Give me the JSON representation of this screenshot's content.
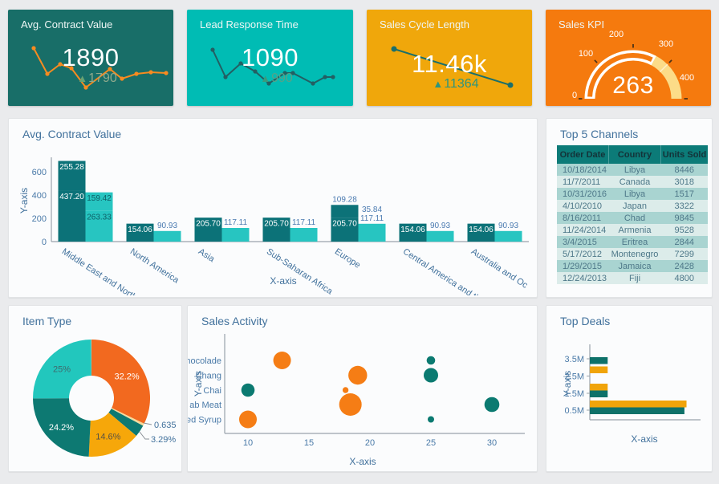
{
  "page": {
    "bg": "#eaebed",
    "panel_bg": "#fbfcfd",
    "panel_border": "#e2e4e6",
    "title_color": "#41719c",
    "axis_text_color": "#4a7aa8",
    "axis_line_color": "#9aa3ab"
  },
  "icons": {
    "up_triangle": "▲"
  },
  "chart_data": [
    {
      "type": "line",
      "kind": "kpi-sparkline",
      "title": "Avg. Contract Value",
      "value": "1890",
      "delta": "1790",
      "bg": "#186e68",
      "line_color": "#f78b20",
      "delta_color": "#8fa98c",
      "triangle_color": "#68a274",
      "points": [
        [
          32,
          48
        ],
        [
          49,
          80
        ],
        [
          65,
          68
        ],
        [
          79,
          73
        ],
        [
          97,
          97
        ],
        [
          127,
          74
        ],
        [
          142,
          86
        ],
        [
          160,
          80
        ],
        [
          178,
          78
        ],
        [
          197,
          79
        ]
      ]
    },
    {
      "type": "line",
      "kind": "kpi-sparkline",
      "title": "Lead Response Time",
      "value": "1090",
      "delta": "990",
      "bg": "#00bcb4",
      "line_color": "#235f63",
      "delta_color": "#57a287",
      "triangle_color": "#3a9a7c",
      "points": [
        [
          32,
          50
        ],
        [
          48,
          84
        ],
        [
          67,
          67
        ],
        [
          85,
          77
        ],
        [
          102,
          92
        ],
        [
          122,
          79
        ],
        [
          132,
          79
        ],
        [
          157,
          92
        ],
        [
          172,
          84
        ],
        [
          182,
          84
        ]
      ]
    },
    {
      "type": "line",
      "kind": "kpi-line",
      "title": "Sales Cycle Length",
      "value": "11.46k",
      "delta": "11364",
      "bg": "#f0a70b",
      "line_color": "#1a6f6b",
      "delta_color": "#2e957d",
      "triangle_color": "#2e957d",
      "points": [
        [
          34,
          49
        ],
        [
          179,
          94
        ]
      ]
    },
    {
      "type": "gauge",
      "title": "Sales KPI",
      "value": 263,
      "min": 0,
      "max": 400,
      "ticks": [
        0,
        100,
        200,
        300,
        400
      ],
      "bg": "#f57a0e",
      "band_color": "#fcdc88",
      "value_band_color": "#ffffff",
      "tick_mark_color": "#4d3318",
      "tick_text_color": "#ffffff"
    },
    {
      "type": "bar",
      "title": "Avg. Contract Value",
      "xlabel": "X-axis",
      "ylabel": "Y-axis",
      "ylim": [
        0,
        700
      ],
      "yticks": [
        0,
        200,
        400,
        600
      ],
      "colors": {
        "series1": "#0c7278",
        "series2": "#27c5c1",
        "label_inside1": "#ffffff",
        "label_inside2": "#0e5f66",
        "label_above": "#4a7ab0"
      },
      "groups": [
        {
          "category": "Middle East and North Af",
          "series1": [
            {
              "v": 437.2,
              "label": "437.20",
              "pos": "inside"
            },
            {
              "v": 255.28,
              "label": "255.28",
              "pos": "inside"
            }
          ],
          "series2": [
            {
              "v": 263.33,
              "label": "263.33",
              "pos": "inside"
            },
            {
              "v": 159.42,
              "label": "159.42",
              "pos": "inside"
            }
          ]
        },
        {
          "category": "North America",
          "series1": [
            {
              "v": 154.06,
              "label": "154.06",
              "pos": "inside"
            }
          ],
          "series2": [
            {
              "v": 90.93,
              "label": "90.93",
              "pos": "above"
            }
          ]
        },
        {
          "category": "Asia",
          "series1": [
            {
              "v": 205.7,
              "label": "205.70",
              "pos": "inside"
            }
          ],
          "series2": [
            {
              "v": 117.11,
              "label": "117.11",
              "pos": "above"
            }
          ]
        },
        {
          "category": "Sub-Saharan Africa",
          "series1": [
            {
              "v": 205.7,
              "label": "205.70",
              "pos": "inside"
            }
          ],
          "series2": [
            {
              "v": 117.11,
              "label": "117.11",
              "pos": "above"
            }
          ]
        },
        {
          "category": "Europe",
          "series1": [
            {
              "v": 205.7,
              "label": "205.70",
              "pos": "inside"
            },
            {
              "v": 109.28,
              "label": "109.28",
              "pos": "above"
            }
          ],
          "series2": [
            {
              "v": 117.11,
              "label": "117.11",
              "pos": "above"
            },
            {
              "v": 35.84,
              "label": "35.84",
              "pos": "above"
            }
          ]
        },
        {
          "category": "Central America and the C",
          "series1": [
            {
              "v": 154.06,
              "label": "154.06",
              "pos": "inside"
            }
          ],
          "series2": [
            {
              "v": 90.93,
              "label": "90.93",
              "pos": "above"
            }
          ]
        },
        {
          "category": "Australia and Oc",
          "series1": [
            {
              "v": 154.06,
              "label": "154.06",
              "pos": "inside"
            }
          ],
          "series2": [
            {
              "v": 90.93,
              "label": "90.93",
              "pos": "above"
            }
          ]
        }
      ]
    },
    {
      "type": "table",
      "title": "Top 5 Channels",
      "headers": [
        "Order Date",
        "Country",
        "Units Sold"
      ],
      "rows": [
        [
          "10/18/2014",
          "Libya",
          "8446"
        ],
        [
          "11/7/2011",
          "Canada",
          "3018"
        ],
        [
          "10/31/2016",
          "Libya",
          "1517"
        ],
        [
          "4/10/2010",
          "Japan",
          "3322"
        ],
        [
          "8/16/2011",
          "Chad",
          "9845"
        ],
        [
          "11/24/2014",
          "Armenia",
          "9528"
        ],
        [
          "3/4/2015",
          "Eritrea",
          "2844"
        ],
        [
          "5/17/2012",
          "Montenegro",
          "7299"
        ],
        [
          "1/29/2015",
          "Jamaica",
          "2428"
        ],
        [
          "12/24/2013",
          "Fiji",
          "4800"
        ]
      ],
      "header_bg": "#0c7b78",
      "header_text": "#143238",
      "row_bg_a": "#a9d4d1",
      "row_bg_b": "#dcecea",
      "row_text": "#4e7889"
    },
    {
      "type": "pie",
      "title": "Item Type",
      "slices": [
        {
          "label": "32.2%",
          "value": 32.2,
          "color": "#f2691f",
          "label_pos": "inside",
          "label_color": "#ffffff"
        },
        {
          "label": "0.635",
          "value": 0.635,
          "color": "#f5da9b",
          "label_pos": "outside",
          "label_color": "#41719c"
        },
        {
          "label": "3.29%",
          "value": 3.29,
          "color": "#0d7972",
          "label_pos": "outside",
          "label_color": "#41719c"
        },
        {
          "label": "14.6%",
          "value": 14.6,
          "color": "#f6a70a",
          "label_pos": "inside",
          "label_color": "#5a5243"
        },
        {
          "label": "24.2%",
          "value": 24.2,
          "color": "#0d7972",
          "label_pos": "inside",
          "label_color": "#ffffff"
        },
        {
          "label": "25%",
          "value": 25,
          "color": "#22c7bd",
          "label_pos": "inside",
          "label_color": "#3f6b6e"
        }
      ]
    },
    {
      "type": "scatter",
      "title": "Sales Activity",
      "xlabel": "X-axis",
      "ylabel": "Y-axis",
      "xticks": [
        10,
        15,
        20,
        25,
        30
      ],
      "categories": [
        "hocolade",
        "Chang",
        "Chai",
        "ab Meat",
        "ed Syrup"
      ],
      "colors": {
        "orange": "#f57d15",
        "teal": "#0b7a71"
      },
      "points": [
        {
          "x": 12.8,
          "cat": 0,
          "r": 11,
          "c": "orange"
        },
        {
          "x": 25,
          "cat": 0,
          "r": 5.3,
          "c": "teal"
        },
        {
          "x": 19,
          "cat": 1,
          "r": 11.7,
          "c": "orange"
        },
        {
          "x": 25,
          "cat": 1,
          "r": 9,
          "c": "teal"
        },
        {
          "x": 10,
          "cat": 2,
          "r": 8.3,
          "c": "teal"
        },
        {
          "x": 18,
          "cat": 2,
          "r": 3.7,
          "c": "orange"
        },
        {
          "x": 18.4,
          "cat": 3,
          "r": 14,
          "c": "orange"
        },
        {
          "x": 30,
          "cat": 3,
          "r": 9.3,
          "c": "teal"
        },
        {
          "x": 10,
          "cat": 4,
          "r": 11,
          "c": "orange"
        },
        {
          "x": 25,
          "cat": 4,
          "r": 4,
          "c": "teal"
        }
      ]
    },
    {
      "type": "bar",
      "title": "Top Deals",
      "xlabel": "X-axis",
      "ylabel": "Y-axis",
      "yticks": [
        "3.5M",
        "2.5M",
        "1.5M",
        "0.5M"
      ],
      "colors": {
        "amber": "#f0a40a",
        "teal": "#0e7169"
      },
      "bars": [
        {
          "row": 0,
          "c": "teal",
          "len": 0.17
        },
        {
          "row": 1,
          "c": "amber",
          "len": 0.17
        },
        {
          "row": 2,
          "c": "amber",
          "len": 0.17
        },
        {
          "row": 3,
          "c": "teal",
          "len": 0.17
        },
        {
          "row": 4,
          "c": "amber",
          "len": 0.92
        },
        {
          "row": 5,
          "c": "teal",
          "len": 0.9
        }
      ]
    }
  ]
}
